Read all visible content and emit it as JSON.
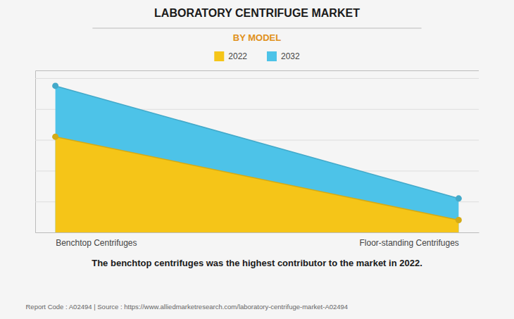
{
  "chart_data": {
    "type": "area",
    "title": "LABORATORY CENTRIFUGE MARKET",
    "subtitle": "BY MODEL",
    "categories": [
      "Benchtop Centrifuges",
      "Floor-standing Centrifuges"
    ],
    "series": [
      {
        "name": "2022",
        "color": "#F5C518",
        "values": [
          0.62,
          0.08
        ]
      },
      {
        "name": "2032",
        "color": "#4DC3E8",
        "values": [
          0.95,
          0.22
        ]
      }
    ],
    "ylim": [
      0,
      1.05
    ],
    "yticks": [
      0.2,
      0.4,
      0.6,
      0.8,
      1.0
    ],
    "grid": true,
    "tick_labels": "x",
    "legend": "top",
    "marker": "circle",
    "annotations": [
      "The benchtop centrifuges was the highest contributor to the market in 2022.",
      "Report Code : A02494  |  Source : https://www.alliedmarketresearch.com/laboratory-centrifuge-market-A02494"
    ]
  }
}
